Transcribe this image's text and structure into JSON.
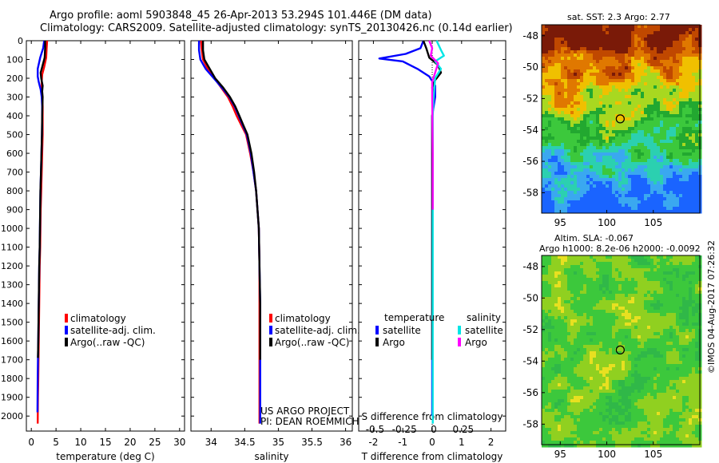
{
  "header": {
    "line1": "Argo profile: aoml 5903848_45 26-Apr-2013 53.294S 101.446E (DM data)",
    "line2": "Climatology: CARS2009. Satellite-adjusted climatology: synTS_20130426.nc (0.14d earlier)"
  },
  "project": {
    "line1": "US ARGO PROJECT",
    "line2": "PI: DEAN ROEMMICH"
  },
  "stamp": "©IMOS 04-Aug-2017 07:26:32",
  "colors": {
    "climatology": "#ff0000",
    "satellite": "#0000ff",
    "argo": "#000000",
    "sal_satellite": "#00e5e5",
    "sal_argo": "#ff00ff"
  },
  "chart_data": [
    {
      "type": "line",
      "id": "temperature",
      "xlabel": "temperature (deg C)",
      "ylabel": "",
      "xlim": [
        -1,
        31
      ],
      "ylim": [
        2080,
        0
      ],
      "xticks": [
        0,
        5,
        10,
        15,
        20,
        25,
        30
      ],
      "yticks": [
        0,
        100,
        200,
        300,
        400,
        500,
        600,
        700,
        800,
        900,
        1000,
        1100,
        1200,
        1300,
        1400,
        1500,
        1600,
        1700,
        1800,
        1900,
        2000
      ],
      "legend": [
        "climatology",
        "satellite-adj. clim.",
        "Argo(..raw -QC)"
      ],
      "legend_position": "lower-left",
      "series": [
        {
          "name": "climatology",
          "color": "#ff0000",
          "x": [
            3.2,
            3.1,
            3.0,
            2.6,
            2.2,
            2.1,
            2.1,
            2.2,
            2.3,
            2.3,
            2.3,
            2.2,
            2.1,
            2.0,
            1.9,
            1.85,
            1.8,
            1.7,
            1.65,
            1.6,
            1.55,
            1.5,
            1.45,
            1.4,
            1.35,
            1.3
          ],
          "y": [
            0,
            40,
            90,
            140,
            180,
            220,
            260,
            300,
            350,
            400,
            500,
            600,
            700,
            800,
            900,
            1000,
            1100,
            1200,
            1300,
            1400,
            1500,
            1600,
            1700,
            1800,
            1900,
            2040
          ]
        },
        {
          "name": "satellite",
          "color": "#0000ff",
          "x": [
            2.6,
            2.4,
            1.8,
            1.3,
            1.3,
            1.5,
            1.9,
            2.1,
            2.2,
            2.2,
            2.15,
            2.05,
            1.95,
            1.85,
            1.8,
            1.75,
            1.7,
            1.6,
            1.55,
            1.5,
            1.45,
            1.4,
            1.35,
            1.3,
            1.25
          ],
          "y": [
            0,
            40,
            90,
            150,
            190,
            220,
            260,
            300,
            350,
            400,
            500,
            600,
            700,
            800,
            900,
            1000,
            1100,
            1200,
            1300,
            1400,
            1500,
            1600,
            1700,
            1800,
            1980
          ]
        },
        {
          "name": "Argo",
          "color": "#000000",
          "x": [
            2.8,
            2.8,
            2.7,
            2.2,
            1.9,
            2.0,
            2.3,
            2.2,
            2.3,
            2.2,
            2.15,
            2.05,
            1.95,
            1.85,
            1.8,
            1.75,
            1.7,
            1.6,
            1.55,
            1.5,
            1.45,
            1.4,
            1.35
          ],
          "y": [
            0,
            40,
            90,
            140,
            170,
            200,
            240,
            270,
            300,
            400,
            500,
            600,
            700,
            800,
            900,
            1000,
            1100,
            1200,
            1300,
            1400,
            1500,
            1600,
            1690
          ]
        }
      ]
    },
    {
      "type": "line",
      "id": "salinity",
      "xlabel": "salinity",
      "ylabel": "",
      "xlim": [
        33.7,
        36.1
      ],
      "ylim": [
        2080,
        0
      ],
      "xticks": [
        34,
        34.5,
        35,
        35.5,
        36
      ],
      "legend": [
        "climatology",
        "satellite-adj. clim.",
        "Argo(..raw -QC)"
      ],
      "legend_position": "lower-left",
      "series": [
        {
          "name": "climatology",
          "color": "#ff0000",
          "x": [
            33.85,
            33.86,
            33.88,
            33.95,
            34.05,
            34.15,
            34.25,
            34.32,
            34.38,
            34.45,
            34.52,
            34.58,
            34.63,
            34.67,
            34.69,
            34.71,
            34.72,
            34.72,
            34.72,
            34.72,
            34.72,
            34.72
          ],
          "y": [
            0,
            50,
            100,
            150,
            200,
            250,
            300,
            350,
            400,
            450,
            500,
            600,
            700,
            800,
            900,
            1000,
            1200,
            1400,
            1600,
            1800,
            2000,
            2040
          ]
        },
        {
          "name": "satellite",
          "color": "#0000ff",
          "x": [
            33.82,
            33.82,
            33.84,
            33.92,
            34.04,
            34.16,
            34.27,
            34.35,
            34.41,
            34.47,
            34.53,
            34.59,
            34.63,
            34.67,
            34.69,
            34.71,
            34.72,
            34.73,
            34.73,
            34.73,
            34.73,
            34.73
          ],
          "y": [
            0,
            50,
            100,
            150,
            200,
            250,
            300,
            350,
            400,
            450,
            500,
            600,
            700,
            800,
            900,
            1000,
            1200,
            1400,
            1600,
            1800,
            2000,
            2040
          ]
        },
        {
          "name": "Argo",
          "color": "#000000",
          "x": [
            33.88,
            33.88,
            33.9,
            33.98,
            34.06,
            34.18,
            34.28,
            34.36,
            34.42,
            34.48,
            34.54,
            34.6,
            34.64,
            34.67,
            34.69,
            34.71,
            34.72,
            34.73,
            34.73
          ],
          "y": [
            0,
            50,
            100,
            150,
            200,
            250,
            300,
            350,
            400,
            450,
            500,
            600,
            700,
            800,
            900,
            1000,
            1200,
            1400,
            1700
          ]
        }
      ]
    },
    {
      "type": "line",
      "id": "difference",
      "xlabel": "T difference from climatology",
      "xlabel2": "S difference from climatology",
      "xlim": [
        -2.5,
        2.5
      ],
      "ylim": [
        2080,
        0
      ],
      "xticks": [
        -2,
        -1,
        0,
        1,
        2
      ],
      "xtick_labels": [
        "-2",
        "-1",
        "0",
        "1",
        "2"
      ],
      "xticks2": [
        -2,
        -1,
        0,
        1
      ],
      "xtick_labels2": [
        "-0.5",
        "-0.25",
        "0",
        "0.25"
      ],
      "legend_title_left": "temperature",
      "legend_title_right": "salinity",
      "legend": [
        "satellite",
        "Argo",
        "satellite",
        "Argo"
      ],
      "legend_position": "lower-center",
      "series": [
        {
          "name": "T satellite",
          "color": "#0000ff",
          "x": [
            -0.3,
            -0.4,
            -0.9,
            -1.8,
            -1.0,
            -0.5,
            -0.1,
            0.1,
            0.1,
            0.0,
            0.0,
            0.0,
            0.0,
            0.0,
            0.0,
            0.0
          ],
          "y": [
            0,
            40,
            70,
            95,
            110,
            150,
            190,
            240,
            300,
            400,
            600,
            800,
            1000,
            1400,
            1800,
            2000
          ]
        },
        {
          "name": "T Argo",
          "color": "#000000",
          "x": [
            -0.3,
            -0.2,
            -0.1,
            0.2,
            0.3,
            0.1,
            0.0,
            0.05,
            0.0,
            0.0,
            0.0,
            0.0,
            0.0,
            0.0
          ],
          "y": [
            0,
            40,
            90,
            130,
            170,
            210,
            250,
            300,
            400,
            600,
            800,
            1000,
            1400,
            1700
          ]
        },
        {
          "name": "S satellite",
          "color": "#00e5e5",
          "x": [
            0.15,
            0.3,
            0.4,
            0.1,
            0.3,
            0.1,
            0.05,
            0.02,
            0.02,
            0.02,
            0.02,
            0.02,
            0.02
          ],
          "y": [
            0,
            50,
            80,
            110,
            150,
            200,
            300,
            400,
            600,
            1000,
            1400,
            1800,
            2040
          ]
        },
        {
          "name": "S Argo",
          "color": "#ff00ff",
          "x": [
            -0.1,
            0.0,
            -0.05,
            0.2,
            0.1,
            0.0,
            0.0,
            0.02,
            0.02
          ],
          "y": [
            0,
            40,
            80,
            120,
            170,
            220,
            300,
            600,
            900
          ]
        }
      ]
    },
    {
      "type": "heatmap",
      "id": "sst_map",
      "title": "sat. SST: 2.3 Argo: 2.77",
      "xlim": [
        93,
        110
      ],
      "ylim": [
        -59.3,
        -47.3
      ],
      "xticks": [
        95,
        100,
        105
      ],
      "yticks": [
        -48,
        -50,
        -52,
        -54,
        -56,
        -58
      ],
      "marker": {
        "lon": 101.446,
        "lat": -53.294
      },
      "colormap": [
        "#1a64ff",
        "#3aa8f0",
        "#2bd0b0",
        "#3cc83c",
        "#22a830",
        "#a8d820",
        "#f0c000",
        "#e07800",
        "#c04800",
        "#7a1a08"
      ]
    },
    {
      "type": "heatmap",
      "id": "sla_map",
      "title": "Altim. SLA: -0.067",
      "title2": "Argo h1000: 8.2e-06 h2000: -0.0092",
      "xlim": [
        93,
        110
      ],
      "ylim": [
        -59.3,
        -47.3
      ],
      "xticks": [
        95,
        100,
        105
      ],
      "yticks": [
        -48,
        -50,
        -52,
        -54,
        -56,
        -58
      ],
      "marker": {
        "lon": 101.446,
        "lat": -53.294
      },
      "colormap": [
        "#2aa8d8",
        "#28c8b0",
        "#30b848",
        "#3cc83c",
        "#90d020",
        "#e8e020",
        "#f0b000"
      ]
    }
  ]
}
